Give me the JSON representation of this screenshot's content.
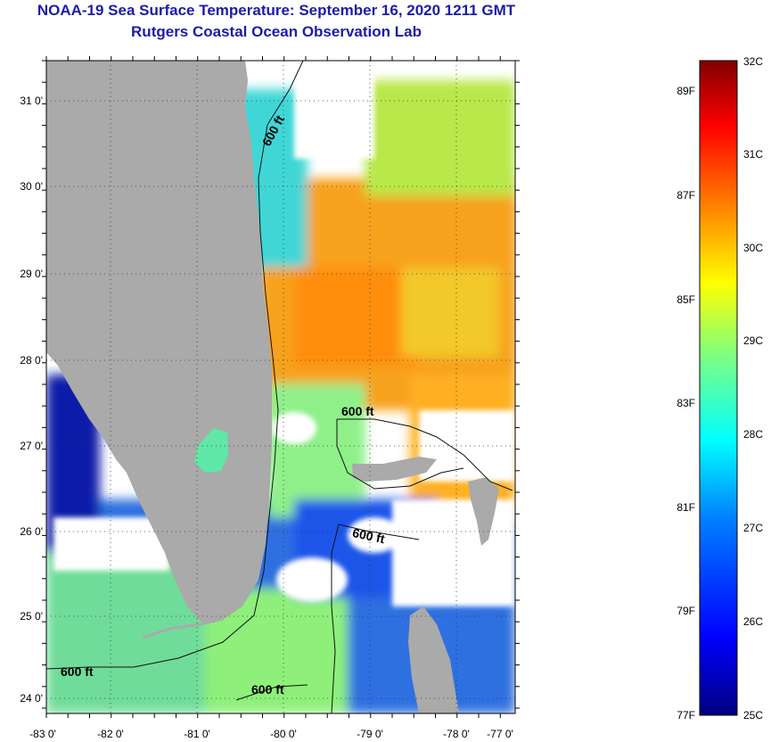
{
  "title": {
    "line1": "NOAA-19 Sea Surface Temperature:  September 16, 2020 1211 GMT",
    "line2": "Rutgers Coastal Ocean Observation Lab"
  },
  "map": {
    "lon_labels": [
      "-83 0'",
      "-82 0'",
      "-81 0'",
      "-80 0'",
      "-79 0'",
      "-78 0'",
      "-77 0'"
    ],
    "lat_labels": [
      "31 0'",
      "30 0'",
      "29 0'",
      "28 0'",
      "27 0'",
      "26 0'",
      "25 0'",
      "24 0'"
    ],
    "contour_labels": [
      "600 ft",
      "600 ft",
      "600 ft",
      "600 ft",
      "600 ft"
    ],
    "land_color": "#aaaaaa",
    "cloud_color": "#ffffff"
  },
  "colorbar": {
    "celsius": [
      "32C",
      "31C",
      "30C",
      "29C",
      "28C",
      "27C",
      "26C",
      "25C"
    ],
    "fahrenheit": [
      "89F",
      "87F",
      "85F",
      "83F",
      "81F",
      "79F",
      "77F"
    ],
    "range_c": [
      25,
      32
    ],
    "colors": [
      "#00007f",
      "#0000ff",
      "#007fff",
      "#00ffff",
      "#7fff7f",
      "#ffff00",
      "#ff7f00",
      "#ff0000",
      "#7f0000"
    ]
  }
}
